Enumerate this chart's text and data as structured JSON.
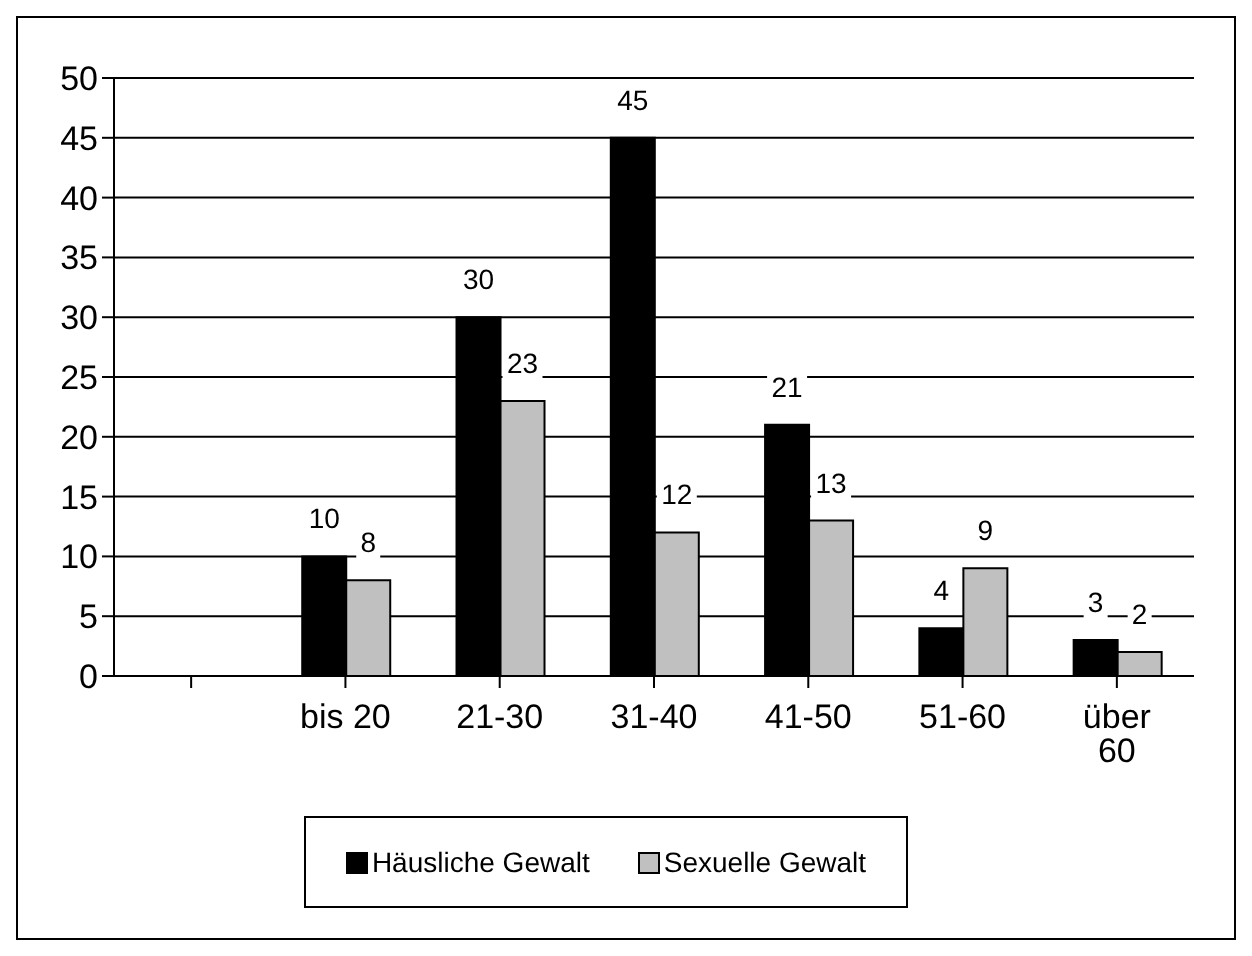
{
  "chart_data": {
    "type": "bar",
    "categories": [
      null,
      "bis 20",
      "21-30",
      "31-40",
      "41-50",
      "51-60",
      "über 60"
    ],
    "series": [
      {
        "name": "Häusliche Gewalt",
        "color": "#000000",
        "values": [
          null,
          10,
          30,
          45,
          21,
          4,
          3
        ]
      },
      {
        "name": "Sexuelle Gewalt",
        "color": "#c0c0c0",
        "values": [
          null,
          8,
          23,
          12,
          13,
          9,
          2
        ]
      }
    ],
    "ylim": [
      0,
      50
    ],
    "yticks": [
      0,
      5,
      10,
      15,
      20,
      25,
      30,
      35,
      40,
      45,
      50
    ],
    "grid": "y",
    "legend": "bottom",
    "data_labels": true
  }
}
